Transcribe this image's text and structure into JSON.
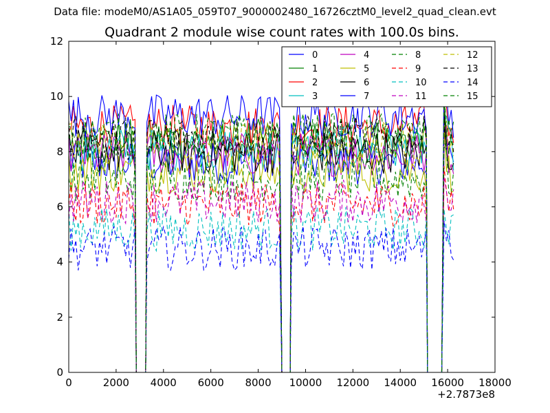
{
  "figure": {
    "suptitle": "Data file: modeM0/AS1A05_059T07_9000002480_16726cztM0_level2_quad_clean.evt"
  },
  "chart_data": {
    "type": "line",
    "title": "Quadrant 2 module wise count rates with 100.0s bins.",
    "xlabel": "",
    "ylabel": "",
    "x_offset_label": "+2.7873e8",
    "xlim": [
      0,
      18000
    ],
    "ylim": [
      0,
      12
    ],
    "x_ticks": [
      0,
      2000,
      4000,
      6000,
      8000,
      10000,
      12000,
      14000,
      16000,
      18000
    ],
    "y_ticks": [
      0,
      2,
      4,
      6,
      8,
      10,
      12
    ],
    "grid": false,
    "legend_position": "top-right",
    "legend_columns": 4,
    "segments": [
      [
        0,
        2800
      ],
      [
        3300,
        8950
      ],
      [
        9400,
        15100
      ],
      [
        15850,
        16250
      ]
    ],
    "gaps_to_zero": [
      [
        2850,
        3250
      ],
      [
        9000,
        9350
      ],
      [
        15150,
        15750
      ]
    ],
    "series": [
      {
        "name": "0",
        "color": "#0000ff",
        "dash": "solid",
        "level": 7.6
      },
      {
        "name": "1",
        "color": "#008000",
        "dash": "solid",
        "level": 8.4
      },
      {
        "name": "2",
        "color": "#ff0000",
        "dash": "solid",
        "level": 8.9
      },
      {
        "name": "3",
        "color": "#00bfbf",
        "dash": "solid",
        "level": 8.1
      },
      {
        "name": "4",
        "color": "#bf00bf",
        "dash": "solid",
        "level": 7.9
      },
      {
        "name": "5",
        "color": "#bfbf00",
        "dash": "solid",
        "level": 7.3
      },
      {
        "name": "6",
        "color": "#000000",
        "dash": "solid",
        "level": 8.0
      },
      {
        "name": "7",
        "color": "#0000ff",
        "dash": "solid",
        "level": 9.3
      },
      {
        "name": "8",
        "color": "#008000",
        "dash": "dashed",
        "level": 7.0
      },
      {
        "name": "9",
        "color": "#ff0000",
        "dash": "dashed",
        "level": 6.1
      },
      {
        "name": "10",
        "color": "#00bfbf",
        "dash": "dashed",
        "level": 5.2
      },
      {
        "name": "11",
        "color": "#bf00bf",
        "dash": "dashed",
        "level": 6.2
      },
      {
        "name": "12",
        "color": "#bfbf00",
        "dash": "dashed",
        "level": 8.3
      },
      {
        "name": "13",
        "color": "#000000",
        "dash": "dashed",
        "level": 8.5
      },
      {
        "name": "14",
        "color": "#0000ff",
        "dash": "dashed",
        "level": 4.5
      },
      {
        "name": "15",
        "color": "#008000",
        "dash": "dashed",
        "level": 8.6
      }
    ]
  }
}
